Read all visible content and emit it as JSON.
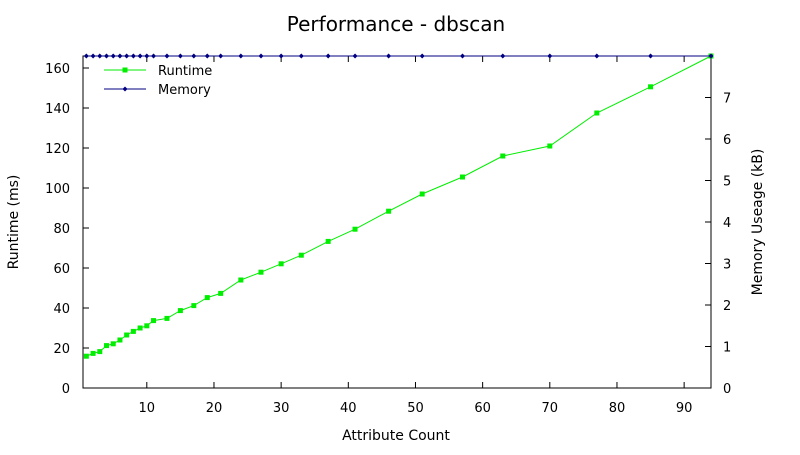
{
  "chart_data": {
    "type": "line",
    "title": "Performance - dbscan",
    "xlabel": "Attribute Count",
    "ylabel": "Runtime (ms)",
    "y2label": "Memory Useage (kB)",
    "xlim": [
      0.5,
      94
    ],
    "ylim": [
      0,
      166
    ],
    "y2lim": [
      0,
      8
    ],
    "x_ticks": [
      "10",
      "20",
      "30",
      "40",
      "50",
      "60",
      "70",
      "80",
      "90"
    ],
    "y_ticks": [
      "0",
      "20",
      "40",
      "60",
      "80",
      "100",
      "120",
      "140",
      "160"
    ],
    "y2_ticks": [
      "0",
      "1",
      "2",
      "3",
      "4",
      "5",
      "6",
      "7"
    ],
    "grid": false,
    "legend_position": "top-left",
    "series": [
      {
        "name": "Runtime",
        "axis": "left",
        "color": "#00ee00",
        "marker": "square",
        "x": [
          1,
          2,
          3,
          4,
          5,
          6,
          7,
          8,
          9,
          10,
          11,
          13,
          15,
          17,
          19,
          21,
          24,
          27,
          30,
          33,
          37,
          41,
          46,
          51,
          57,
          63,
          70,
          77,
          85,
          94
        ],
        "y": [
          15.9,
          17.3,
          18.2,
          21.2,
          22.1,
          24,
          26.5,
          28.3,
          30,
          31.1,
          33.7,
          34.8,
          38.7,
          41.2,
          45.2,
          47.3,
          54,
          57.9,
          62.1,
          66.4,
          73.3,
          79.4,
          88.4,
          97,
          105.5,
          116,
          121,
          137.5,
          150.6,
          166
        ]
      },
      {
        "name": "Memory",
        "axis": "right",
        "color": "#000080",
        "marker": "diamond",
        "x": [
          1,
          2,
          3,
          4,
          5,
          6,
          7,
          8,
          9,
          10,
          11,
          13,
          15,
          17,
          19,
          21,
          24,
          27,
          30,
          33,
          37,
          41,
          46,
          51,
          57,
          63,
          70,
          77,
          85,
          94
        ],
        "y": [
          8,
          8,
          8,
          8,
          8,
          8,
          8,
          8,
          8,
          8,
          8,
          8,
          8,
          8,
          8,
          8,
          8,
          8,
          8,
          8,
          8,
          8,
          8,
          8,
          8,
          8,
          8,
          8,
          8,
          8
        ]
      }
    ]
  }
}
